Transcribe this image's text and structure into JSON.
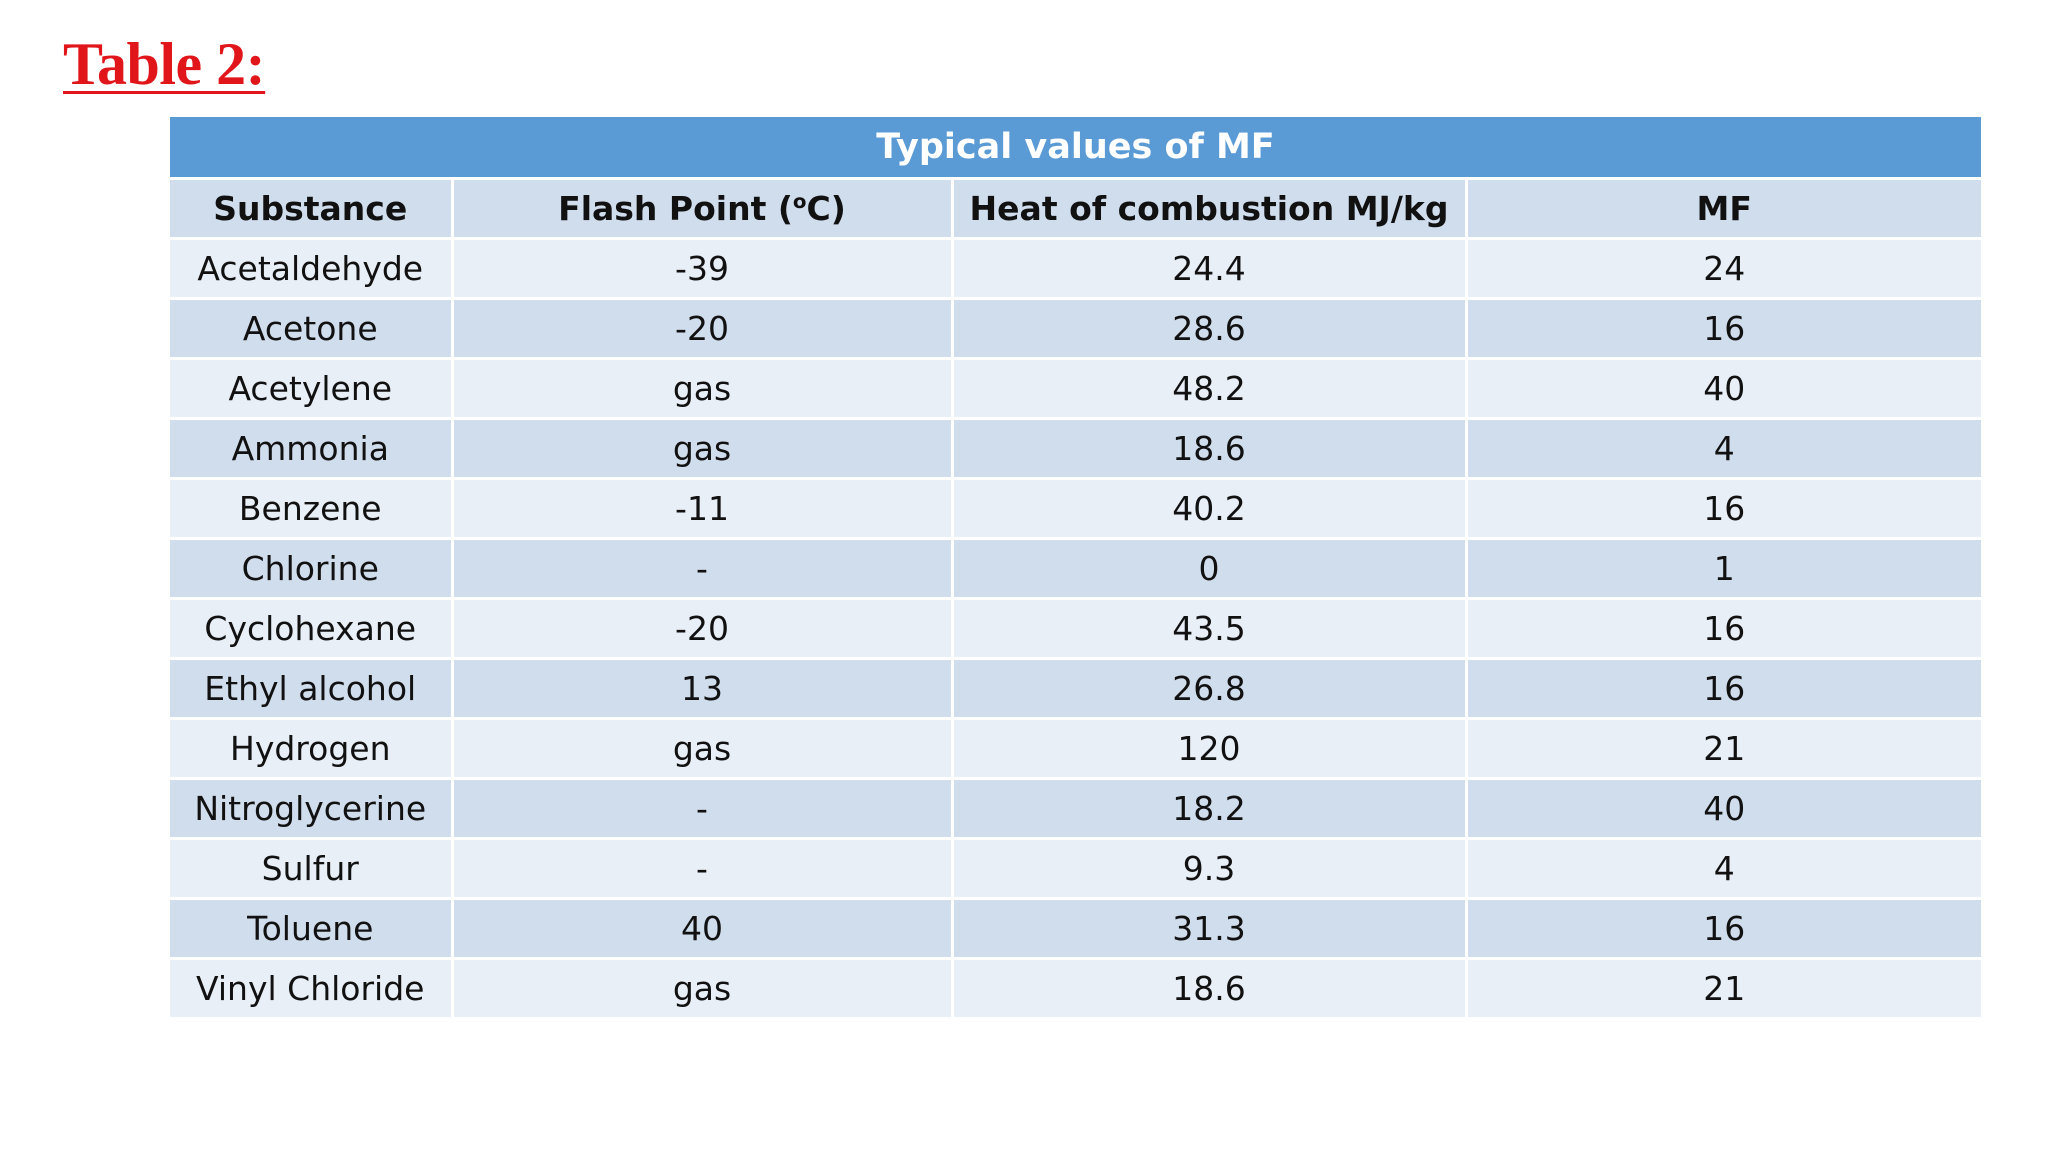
{
  "title": "Table 2:",
  "table": {
    "caption": "Typical values of MF",
    "headers": {
      "substance": "Substance",
      "flash_prefix": "Flash Point (",
      "flash_sup": "o",
      "flash_suffix": "C)",
      "heat": "Heat of combustion MJ/kg",
      "mf": "MF"
    },
    "rows": [
      {
        "substance": "Acetaldehyde",
        "flash_point": "-39",
        "heat": "24.4",
        "mf": "24"
      },
      {
        "substance": "Acetone",
        "flash_point": "-20",
        "heat": "28.6",
        "mf": "16"
      },
      {
        "substance": "Acetylene",
        "flash_point": "gas",
        "heat": "48.2",
        "mf": "40"
      },
      {
        "substance": "Ammonia",
        "flash_point": "gas",
        "heat": "18.6",
        "mf": "4"
      },
      {
        "substance": "Benzene",
        "flash_point": "-11",
        "heat": "40.2",
        "mf": "16"
      },
      {
        "substance": "Chlorine",
        "flash_point": "-",
        "heat": "0",
        "mf": "1"
      },
      {
        "substance": "Cyclohexane",
        "flash_point": "-20",
        "heat": "43.5",
        "mf": "16"
      },
      {
        "substance": "Ethyl alcohol",
        "flash_point": "13",
        "heat": "26.8",
        "mf": "16"
      },
      {
        "substance": "Hydrogen",
        "flash_point": "gas",
        "heat": "120",
        "mf": "21"
      },
      {
        "substance": "Nitroglycerine",
        "flash_point": "-",
        "heat": "18.2",
        "mf": "40"
      },
      {
        "substance": "Sulfur",
        "flash_point": "-",
        "heat": "9.3",
        "mf": "4"
      },
      {
        "substance": "Toluene",
        "flash_point": "40",
        "heat": "31.3",
        "mf": "16"
      },
      {
        "substance": "Vinyl Chloride",
        "flash_point": "gas",
        "heat": "18.6",
        "mf": "21"
      }
    ]
  }
}
